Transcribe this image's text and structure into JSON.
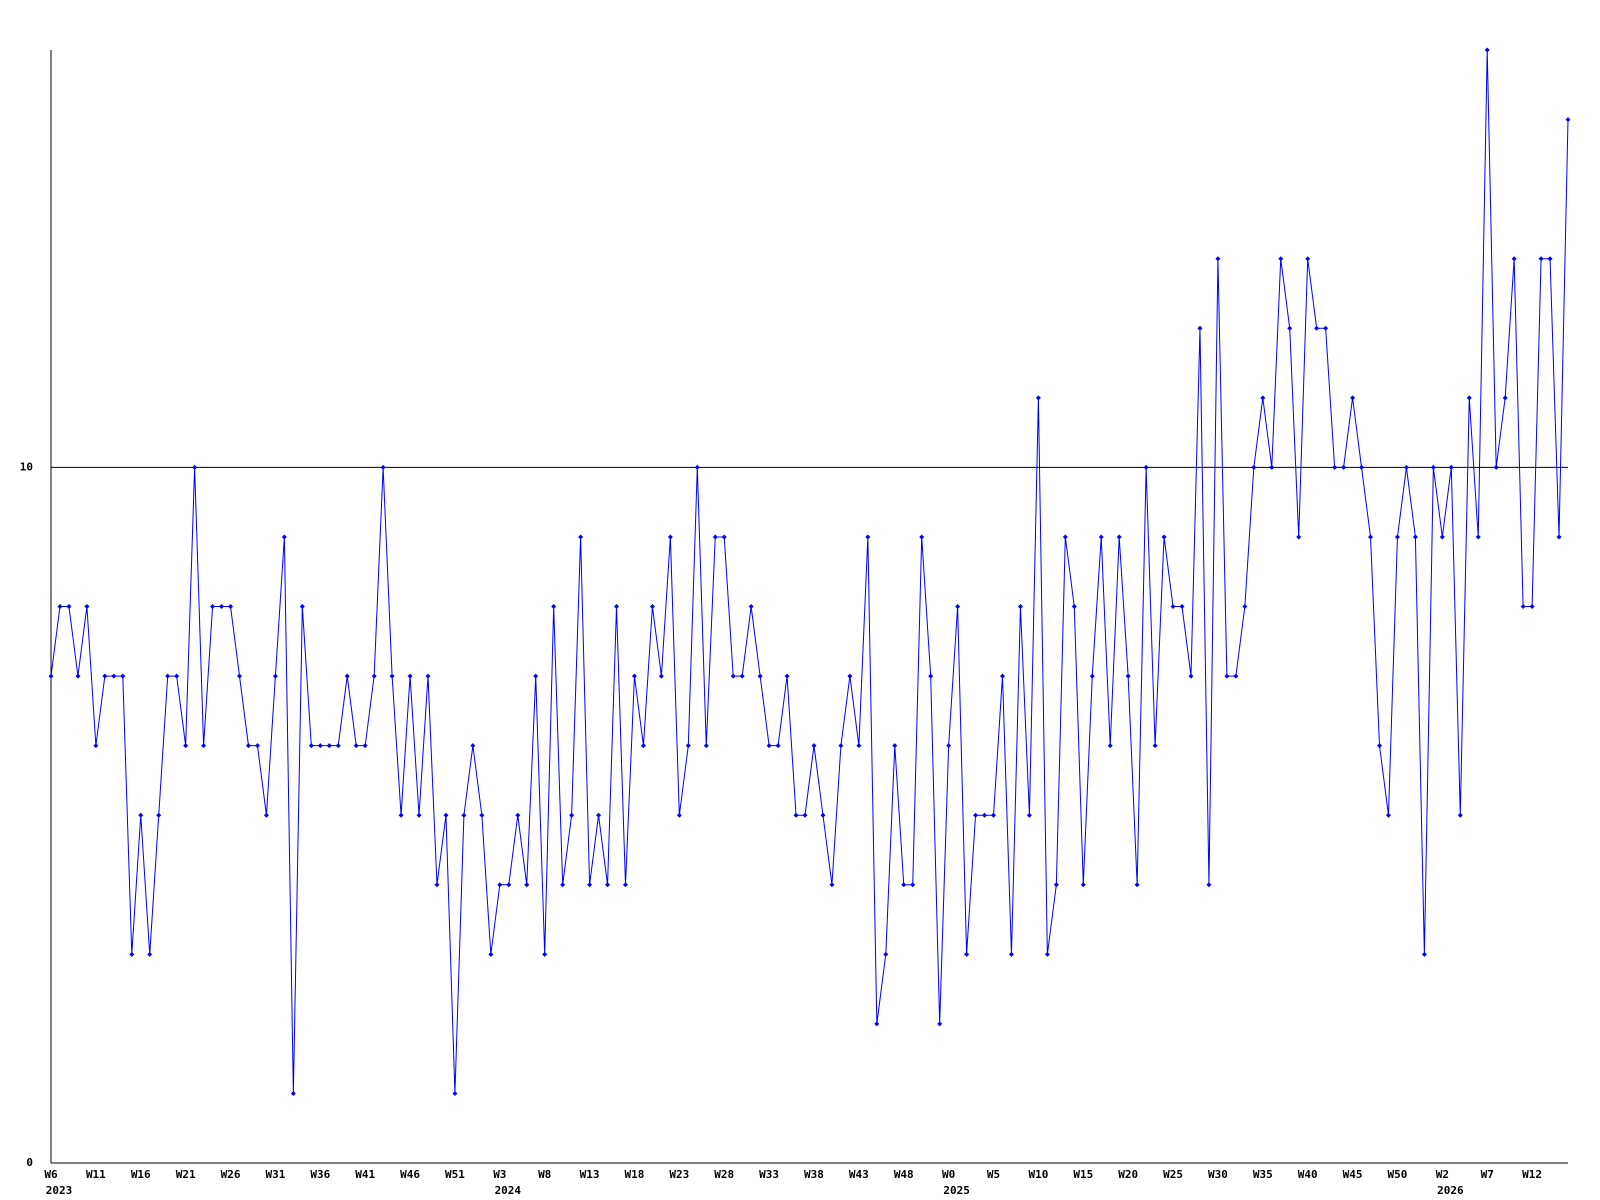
{
  "chart_data": {
    "type": "line",
    "categories": [
      "W6",
      null,
      null,
      null,
      null,
      "W11",
      null,
      null,
      null,
      null,
      "W16",
      null,
      null,
      null,
      null,
      "W21",
      null,
      null,
      null,
      null,
      "W26",
      null,
      null,
      null,
      null,
      "W31",
      null,
      null,
      null,
      null,
      "W36",
      null,
      null,
      null,
      null,
      "W41",
      null,
      null,
      null,
      null,
      "W46",
      null,
      null,
      null,
      null,
      "W51",
      null,
      null,
      null,
      null,
      "W3",
      null,
      null,
      null,
      null,
      "W8",
      null,
      null,
      null,
      null,
      "W13",
      null,
      null,
      null,
      null,
      "W18",
      null,
      null,
      null,
      null,
      "W23",
      null,
      null,
      null,
      null,
      "W28",
      null,
      null,
      null,
      null,
      "W33",
      null,
      null,
      null,
      null,
      "W38",
      null,
      null,
      null,
      null,
      "W43",
      null,
      null,
      null,
      null,
      "W48",
      null,
      null,
      null,
      null,
      "W0",
      null,
      null,
      null,
      null,
      "W5",
      null,
      null,
      null,
      null,
      "W10",
      null,
      null,
      null,
      null,
      "W15",
      null,
      null,
      null,
      null,
      "W20",
      null,
      null,
      null,
      null,
      "W25",
      null,
      null,
      null,
      null,
      "W30",
      null,
      null,
      null,
      null,
      "W35",
      null,
      null,
      null,
      null,
      "W40",
      null,
      null,
      null,
      null,
      "W45",
      null,
      null,
      null,
      null,
      "W50",
      null,
      null,
      null,
      null,
      "W2",
      null,
      null,
      null,
      null,
      "W7",
      null,
      null,
      null,
      null,
      "W12",
      null,
      null,
      null,
      null
    ],
    "year_labels": [
      "2023",
      null,
      null,
      null,
      null,
      null,
      null,
      null,
      null,
      null,
      null,
      null,
      null,
      null,
      null,
      null,
      null,
      null,
      null,
      null,
      null,
      null,
      null,
      null,
      null,
      null,
      null,
      null,
      null,
      null,
      null,
      null,
      null,
      null,
      null,
      null,
      null,
      null,
      null,
      null,
      null,
      null,
      null,
      null,
      null,
      null,
      null,
      null,
      null,
      null,
      "2024",
      null,
      null,
      null,
      null,
      null,
      null,
      null,
      null,
      null,
      null,
      null,
      null,
      null,
      null,
      null,
      null,
      null,
      null,
      null,
      null,
      null,
      null,
      null,
      null,
      null,
      null,
      null,
      null,
      null,
      null,
      null,
      null,
      null,
      null,
      null,
      null,
      null,
      null,
      null,
      null,
      null,
      null,
      null,
      null,
      null,
      null,
      null,
      null,
      null,
      "2025",
      null,
      null,
      null,
      null,
      null,
      null,
      null,
      null,
      null,
      null,
      null,
      null,
      null,
      null,
      null,
      null,
      null,
      null,
      null,
      null,
      null,
      null,
      null,
      null,
      null,
      null,
      null,
      null,
      null,
      null,
      null,
      null,
      null,
      null,
      null,
      null,
      null,
      null,
      null,
      null,
      null,
      null,
      null,
      null,
      null,
      null,
      null,
      null,
      null,
      null,
      null,
      null,
      null,
      null,
      "2026",
      null,
      null,
      null,
      null,
      null,
      null,
      null,
      null,
      null,
      null,
      null,
      null,
      null,
      null
    ],
    "values": [
      7,
      8,
      8,
      7,
      8,
      6,
      7,
      7,
      7,
      3,
      5,
      3,
      5,
      7,
      7,
      6,
      10,
      6,
      8,
      8,
      8,
      7,
      6,
      6,
      5,
      7,
      9,
      1,
      8,
      6,
      6,
      6,
      6,
      7,
      6,
      6,
      7,
      10,
      7,
      5,
      7,
      5,
      7,
      4,
      5,
      1,
      5,
      6,
      5,
      3,
      4,
      4,
      5,
      4,
      7,
      3,
      8,
      4,
      5,
      9,
      4,
      5,
      4,
      8,
      4,
      7,
      6,
      8,
      7,
      9,
      5,
      6,
      10,
      6,
      9,
      9,
      7,
      7,
      8,
      7,
      6,
      6,
      7,
      5,
      5,
      6,
      5,
      4,
      6,
      7,
      6,
      9,
      2,
      3,
      6,
      4,
      4,
      9,
      7,
      2,
      6,
      8,
      3,
      5,
      5,
      5,
      7,
      3,
      8,
      5,
      11,
      3,
      4,
      9,
      8,
      4,
      7,
      9,
      6,
      9,
      7,
      4,
      10,
      6,
      9,
      8,
      8,
      7,
      12,
      4,
      13,
      7,
      7,
      8,
      10,
      11,
      10,
      13,
      12,
      9,
      13,
      12,
      12,
      10,
      10,
      11,
      10,
      9,
      6,
      5,
      9,
      10,
      9,
      3,
      10,
      9,
      10,
      5,
      11,
      9,
      16,
      10,
      11,
      13,
      8,
      8,
      13,
      13,
      9,
      15
    ],
    "color": "#0000ff",
    "ylim": [
      0,
      16
    ],
    "yticks": [
      0,
      10
    ],
    "grid": true
  }
}
